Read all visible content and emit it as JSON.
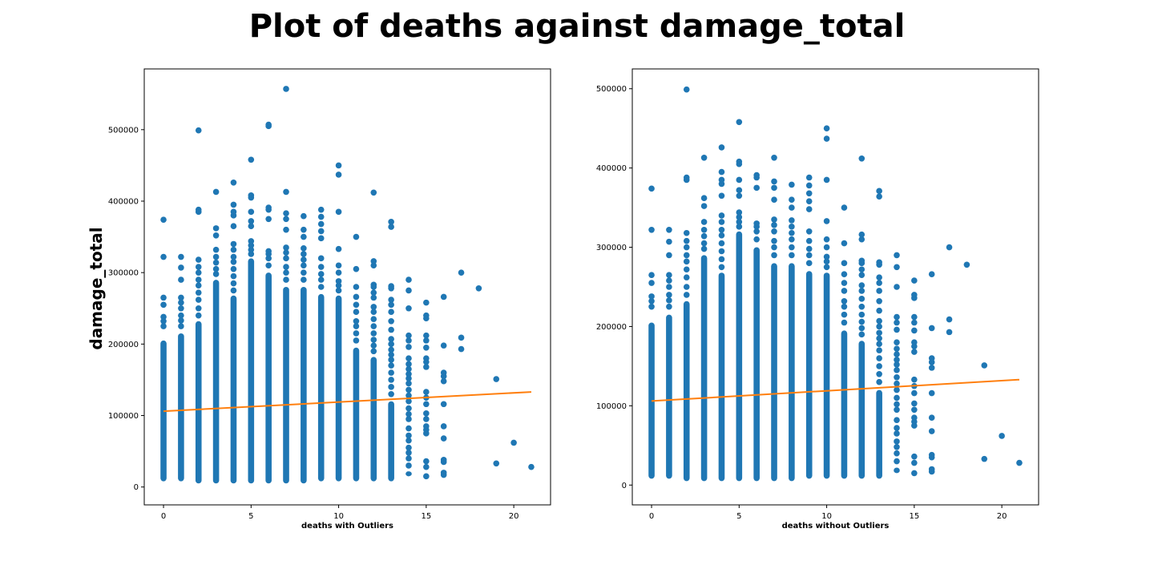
{
  "figure": {
    "suptitle": "Plot of deaths against damage_total"
  },
  "colors": {
    "points": "#1f77b4",
    "fit_line": "#ff7f0e"
  },
  "chart_data": [
    {
      "type": "scatter",
      "xlabel": "deaths with Outliers",
      "ylabel": "damage_total",
      "xlim": [
        -1.1,
        22.1
      ],
      "ylim": [
        -25000,
        585000
      ],
      "xticks": [
        0,
        5,
        10,
        15,
        20
      ],
      "yticks": [
        0,
        100000,
        200000,
        300000,
        400000,
        500000
      ],
      "fit_line": {
        "x": [
          0,
          21
        ],
        "y": [
          106000,
          133000
        ]
      },
      "columns": [
        {
          "x": 0,
          "dense_min": 8000,
          "dense_max": 205000,
          "extra": [
            225000,
            232000,
            238000,
            255000,
            265000,
            322000,
            374000
          ]
        },
        {
          "x": 1,
          "dense_min": 8000,
          "dense_max": 215000,
          "extra": [
            225000,
            233000,
            240000,
            250000,
            258000,
            265000,
            290000,
            307000,
            322000
          ]
        },
        {
          "x": 2,
          "dense_min": 5000,
          "dense_max": 232000,
          "extra": [
            240000,
            250000,
            262000,
            272000,
            282000,
            290000,
            300000,
            308000,
            318000,
            385000,
            388000,
            499000
          ]
        },
        {
          "x": 3,
          "dense_min": 5000,
          "dense_max": 290000,
          "extra": [
            298000,
            305000,
            314000,
            322000,
            332000,
            352000,
            362000,
            413000
          ]
        },
        {
          "x": 4,
          "dense_min": 5000,
          "dense_max": 268000,
          "extra": [
            275000,
            285000,
            295000,
            305000,
            315000,
            322000,
            332000,
            340000,
            365000,
            380000,
            385000,
            395000,
            426000
          ]
        },
        {
          "x": 5,
          "dense_min": 5000,
          "dense_max": 320000,
          "extra": [
            326000,
            332000,
            338000,
            344000,
            365000,
            372000,
            385000,
            405000,
            408000,
            458000
          ]
        },
        {
          "x": 6,
          "dense_min": 5000,
          "dense_max": 300000,
          "extra": [
            310000,
            320000,
            326000,
            330000,
            375000,
            388000,
            391000,
            505000,
            507000
          ]
        },
        {
          "x": 7,
          "dense_min": 5000,
          "dense_max": 280000,
          "extra": [
            290000,
            300000,
            308000,
            320000,
            328000,
            335000,
            360000,
            375000,
            383000,
            413000,
            557000
          ]
        },
        {
          "x": 8,
          "dense_min": 5000,
          "dense_max": 280000,
          "extra": [
            290000,
            300000,
            310000,
            318000,
            326000,
            334000,
            350000,
            360000,
            379000
          ]
        },
        {
          "x": 9,
          "dense_min": 8000,
          "dense_max": 270000,
          "extra": [
            280000,
            290000,
            298000,
            308000,
            320000,
            348000,
            358000,
            368000,
            378000,
            388000
          ]
        },
        {
          "x": 10,
          "dense_min": 8000,
          "dense_max": 268000,
          "extra": [
            275000,
            282000,
            288000,
            300000,
            310000,
            333000,
            385000,
            437000,
            450000
          ]
        },
        {
          "x": 11,
          "dense_min": 8000,
          "dense_max": 195000,
          "extra": [
            205000,
            215000,
            225000,
            232000,
            245000,
            255000,
            266000,
            280000,
            305000,
            350000
          ]
        },
        {
          "x": 12,
          "dense_min": 8000,
          "dense_max": 182000,
          "extra": [
            190000,
            198000,
            206000,
            215000,
            225000,
            235000,
            245000,
            252000,
            265000,
            272000,
            280000,
            283000,
            310000,
            316000,
            412000
          ]
        },
        {
          "x": 13,
          "dense_min": 8000,
          "dense_max": 120000,
          "extra": [
            130000,
            140000,
            150000,
            160000,
            170000,
            178000,
            185000,
            192000,
            200000,
            207000,
            220000,
            232000,
            245000,
            255000,
            262000,
            278000,
            281000,
            364000,
            371000
          ]
        },
        {
          "x": 14,
          "dense_min": 15000,
          "dense_max": 22000,
          "extra": [
            30000,
            40000,
            48000,
            55000,
            65000,
            72000,
            82000,
            95000,
            102000,
            110000,
            120000,
            128000,
            136000,
            145000,
            152000,
            158000,
            165000,
            172000,
            180000,
            196000,
            205000,
            212000,
            250000,
            275000,
            290000
          ]
        },
        {
          "x": 15,
          "dense_min": 15000,
          "dense_max": 15000,
          "extra": [
            28000,
            36000,
            75000,
            80000,
            85000,
            95000,
            103000,
            116000,
            125000,
            133000,
            168000,
            175000,
            180000,
            195000,
            205000,
            212000,
            236000,
            240000,
            258000
          ]
        },
        {
          "x": 16,
          "dense_min": 17000,
          "dense_max": 17000,
          "extra": [
            20000,
            35000,
            38000,
            68000,
            85000,
            116000,
            148000,
            155000,
            160000,
            198000,
            266000
          ]
        },
        {
          "x": 17,
          "dense_min": 193000,
          "dense_max": 193000,
          "extra": [
            209000,
            300000
          ]
        },
        {
          "x": 18,
          "dense_min": 278000,
          "dense_max": 278000,
          "extra": []
        },
        {
          "x": 19,
          "dense_min": 33000,
          "dense_max": 33000,
          "extra": [
            151000
          ]
        },
        {
          "x": 20,
          "dense_min": 62000,
          "dense_max": 62000,
          "extra": []
        },
        {
          "x": 21,
          "dense_min": 28000,
          "dense_max": 28000,
          "extra": []
        }
      ]
    },
    {
      "type": "scatter",
      "xlabel": "deaths without Outliers",
      "ylabel": "",
      "xlim": [
        -1.1,
        22.1
      ],
      "ylim": [
        -25000,
        525000
      ],
      "xticks": [
        0,
        5,
        10,
        15,
        20
      ],
      "yticks": [
        0,
        100000,
        200000,
        300000,
        400000,
        500000
      ],
      "fit_line": {
        "x": [
          0,
          21
        ],
        "y": [
          106000,
          133000
        ]
      },
      "columns": [
        {
          "x": 0,
          "dense_min": 8000,
          "dense_max": 205000,
          "extra": [
            225000,
            232000,
            238000,
            255000,
            265000,
            322000,
            374000
          ]
        },
        {
          "x": 1,
          "dense_min": 8000,
          "dense_max": 215000,
          "extra": [
            225000,
            233000,
            240000,
            250000,
            258000,
            265000,
            290000,
            307000,
            322000
          ]
        },
        {
          "x": 2,
          "dense_min": 5000,
          "dense_max": 232000,
          "extra": [
            240000,
            250000,
            262000,
            272000,
            282000,
            290000,
            300000,
            308000,
            318000,
            385000,
            388000,
            499000
          ]
        },
        {
          "x": 3,
          "dense_min": 5000,
          "dense_max": 290000,
          "extra": [
            298000,
            305000,
            314000,
            322000,
            332000,
            352000,
            362000,
            413000
          ]
        },
        {
          "x": 4,
          "dense_min": 5000,
          "dense_max": 268000,
          "extra": [
            275000,
            285000,
            295000,
            305000,
            315000,
            322000,
            332000,
            340000,
            365000,
            380000,
            385000,
            395000,
            426000
          ]
        },
        {
          "x": 5,
          "dense_min": 5000,
          "dense_max": 320000,
          "extra": [
            326000,
            332000,
            338000,
            344000,
            365000,
            372000,
            385000,
            405000,
            408000,
            458000
          ]
        },
        {
          "x": 6,
          "dense_min": 5000,
          "dense_max": 300000,
          "extra": [
            310000,
            320000,
            326000,
            330000,
            375000,
            388000,
            391000
          ]
        },
        {
          "x": 7,
          "dense_min": 5000,
          "dense_max": 280000,
          "extra": [
            290000,
            300000,
            308000,
            320000,
            328000,
            335000,
            360000,
            375000,
            383000,
            413000
          ]
        },
        {
          "x": 8,
          "dense_min": 5000,
          "dense_max": 280000,
          "extra": [
            290000,
            300000,
            310000,
            318000,
            326000,
            334000,
            350000,
            360000,
            379000
          ]
        },
        {
          "x": 9,
          "dense_min": 8000,
          "dense_max": 270000,
          "extra": [
            280000,
            290000,
            298000,
            308000,
            320000,
            348000,
            358000,
            368000,
            378000,
            388000
          ]
        },
        {
          "x": 10,
          "dense_min": 8000,
          "dense_max": 268000,
          "extra": [
            275000,
            282000,
            288000,
            300000,
            310000,
            333000,
            385000,
            437000,
            450000
          ]
        },
        {
          "x": 11,
          "dense_min": 8000,
          "dense_max": 195000,
          "extra": [
            205000,
            215000,
            225000,
            232000,
            245000,
            255000,
            266000,
            280000,
            305000,
            350000
          ]
        },
        {
          "x": 12,
          "dense_min": 8000,
          "dense_max": 182000,
          "extra": [
            190000,
            198000,
            206000,
            215000,
            225000,
            235000,
            245000,
            252000,
            265000,
            272000,
            280000,
            283000,
            310000,
            316000,
            412000
          ]
        },
        {
          "x": 13,
          "dense_min": 8000,
          "dense_max": 120000,
          "extra": [
            130000,
            140000,
            150000,
            160000,
            170000,
            178000,
            185000,
            192000,
            200000,
            207000,
            220000,
            232000,
            245000,
            255000,
            262000,
            278000,
            281000,
            364000,
            371000
          ]
        },
        {
          "x": 14,
          "dense_min": 15000,
          "dense_max": 22000,
          "extra": [
            30000,
            40000,
            48000,
            55000,
            65000,
            72000,
            82000,
            95000,
            102000,
            110000,
            120000,
            128000,
            136000,
            145000,
            152000,
            158000,
            165000,
            172000,
            180000,
            196000,
            205000,
            212000,
            250000,
            275000,
            290000
          ]
        },
        {
          "x": 15,
          "dense_min": 15000,
          "dense_max": 15000,
          "extra": [
            28000,
            36000,
            75000,
            80000,
            85000,
            95000,
            103000,
            116000,
            125000,
            133000,
            168000,
            175000,
            180000,
            195000,
            205000,
            212000,
            236000,
            240000,
            258000
          ]
        },
        {
          "x": 16,
          "dense_min": 17000,
          "dense_max": 17000,
          "extra": [
            20000,
            35000,
            38000,
            68000,
            85000,
            116000,
            148000,
            155000,
            160000,
            198000,
            266000
          ]
        },
        {
          "x": 17,
          "dense_min": 193000,
          "dense_max": 193000,
          "extra": [
            209000,
            300000
          ]
        },
        {
          "x": 18,
          "dense_min": 278000,
          "dense_max": 278000,
          "extra": []
        },
        {
          "x": 19,
          "dense_min": 33000,
          "dense_max": 33000,
          "extra": [
            151000
          ]
        },
        {
          "x": 20,
          "dense_min": 62000,
          "dense_max": 62000,
          "extra": []
        },
        {
          "x": 21,
          "dense_min": 28000,
          "dense_max": 28000,
          "extra": []
        }
      ]
    }
  ]
}
